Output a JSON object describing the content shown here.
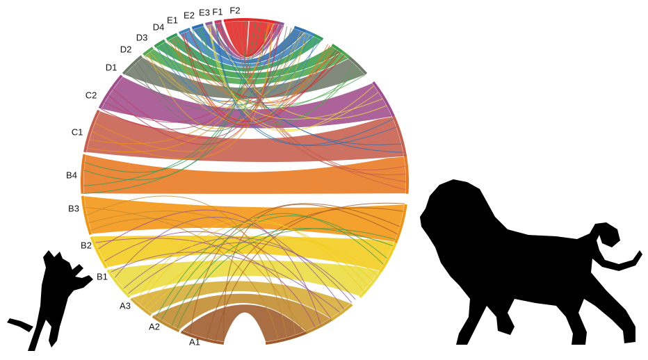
{
  "labels": [
    "A1",
    "A2",
    "A3",
    "B1",
    "B2",
    "B3",
    "B4",
    "C1",
    "C2",
    "D1",
    "D2",
    "D3",
    "D4",
    "E1",
    "E2",
    "E3",
    "F1",
    "F2"
  ]
}
